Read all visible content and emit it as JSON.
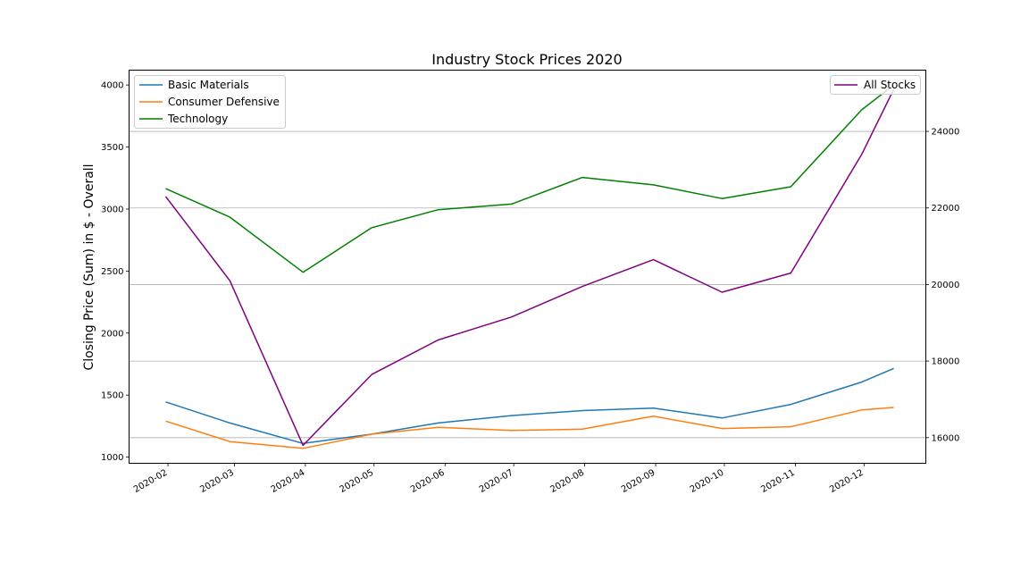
{
  "chart_data": {
    "type": "line",
    "title": "Industry Stock Prices 2020",
    "xlabel": "",
    "ylabel": "Closing Price (Sum) in $ - Overall",
    "x": [
      "2020-01-31",
      "2020-02-28",
      "2020-03-31",
      "2020-04-30",
      "2020-05-29",
      "2020-06-30",
      "2020-07-31",
      "2020-08-31",
      "2020-09-30",
      "2020-10-30",
      "2020-11-30",
      "2020-12-14"
    ],
    "x_ticks": [
      "2020-02",
      "2020-03",
      "2020-04",
      "2020-05",
      "2020-06",
      "2020-07",
      "2020-08",
      "2020-09",
      "2020-10",
      "2020-11",
      "2020-12"
    ],
    "ylim": [
      950,
      4120
    ],
    "yticks": [
      1000,
      1500,
      2000,
      2500,
      3000,
      3500,
      4000
    ],
    "y2lim": [
      15330,
      25600
    ],
    "y2ticks": [
      16000,
      18000,
      20000,
      22000,
      24000
    ],
    "grid": "right axis horizontal",
    "series": [
      {
        "name": "Basic Materials",
        "axis": "left",
        "color": "#1f77b4",
        "values": [
          1445,
          1275,
          1110,
          1185,
          1275,
          1335,
          1375,
          1395,
          1315,
          1425,
          1605,
          1715
        ]
      },
      {
        "name": "Consumer Defensive",
        "axis": "left",
        "color": "#ff7f0e",
        "values": [
          1290,
          1125,
          1070,
          1185,
          1240,
          1215,
          1225,
          1330,
          1230,
          1245,
          1380,
          1400
        ]
      },
      {
        "name": "Technology",
        "axis": "left",
        "color": "#008000",
        "values": [
          3165,
          2935,
          2490,
          2850,
          2995,
          3040,
          3255,
          3195,
          3085,
          3180,
          3800,
          4000
        ]
      },
      {
        "name": "All Stocks",
        "axis": "right",
        "color": "#800080",
        "values": [
          22300,
          20100,
          15800,
          17650,
          18550,
          19150,
          19950,
          20650,
          19800,
          20300,
          23400,
          25100
        ]
      }
    ],
    "legend_left": {
      "placement": "upper-left",
      "items": [
        "Basic Materials",
        "Consumer Defensive",
        "Technology"
      ]
    },
    "legend_right": {
      "placement": "upper-right",
      "items": [
        "All Stocks"
      ]
    }
  }
}
